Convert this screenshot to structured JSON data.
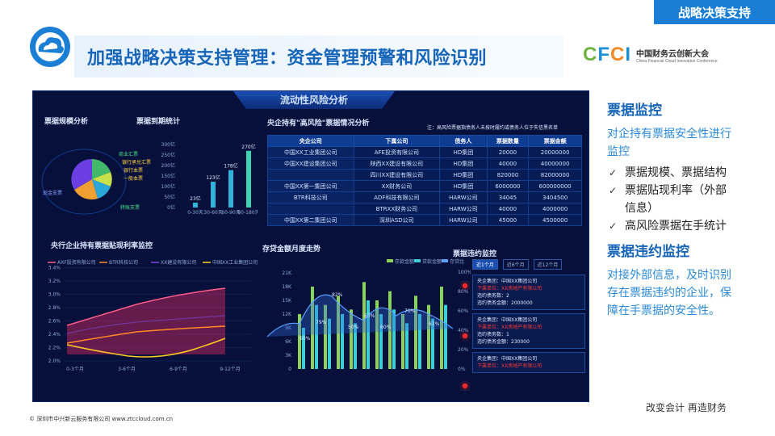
{
  "corner_tag": "战略决策支持",
  "title": "加强战略决策支持管理：资金管理预警和风险识别",
  "cfci": {
    "mark_c": "C",
    "mark_f": "F",
    "mark_c2": "C",
    "mark_i": "I",
    "name_cn": "中国财务云创新大会",
    "name_en": "China Financial Cloud Innovation Conference"
  },
  "dashboard": {
    "header": "流动性风险分析",
    "scale_title": "票据规模分析",
    "due_title": "票据到期统计",
    "pie_labels": [
      "商业汇票",
      "银行承兑汇票",
      "银行本票",
      "一般本票",
      "现金支票",
      "转账支票"
    ],
    "due_bars": {
      "labels": [
        "0-30天",
        "30-60天",
        "60-90天",
        "90-180天"
      ],
      "values": [
        "23亿",
        "123亿",
        "178亿",
        "270亿"
      ],
      "ticks": [
        "0亿",
        "50亿",
        "100亿",
        "150亿",
        "200亿",
        "250亿",
        "300亿"
      ]
    },
    "risk_title": "央企持有\"高风险\"票据情况分析",
    "risk_notice": "注：高风险票据指债务人未按时履约或债务人位于失信黑名单",
    "table": {
      "headers": [
        "央企公司",
        "下属公司",
        "债务人",
        "票据数量",
        "票据金额"
      ],
      "rows": [
        [
          "中国XX工业集团公司",
          "AFE投资有限公司",
          "HD集团",
          "20000",
          "20000000"
        ],
        [
          "中国XX建设集团公司",
          "陕西XX建设有限公司",
          "HD集团",
          "40000",
          "40000000"
        ],
        [
          "",
          "四川XX建设有限公司",
          "HD集团",
          "820000",
          "82000000"
        ],
        [
          "中国XX第一集团公司",
          "XX财务公司",
          "HD集团",
          "6000000",
          "600000000"
        ],
        [
          "BTR科技公司",
          "ADF科技有限公司",
          "HARW公司",
          "34045",
          "3404500"
        ],
        [
          "",
          "BTRXX财务公司",
          "HARW公司",
          "40000",
          "4000000"
        ],
        [
          "中国XX第二集团公司",
          "深圳ASD公司",
          "HARW公司",
          "45000",
          "4500000"
        ]
      ]
    },
    "discount_title": "央行企业持有票据贴现利率监控",
    "discount_legend": [
      "AXF投资有限公司",
      "BTR科技公司",
      "XX建设有限公司",
      "中国XX工业集团公司"
    ],
    "discount_yticks": [
      "2.0%",
      "2.2%",
      "2.4%",
      "2.6%",
      "2.8%",
      "3.0%",
      "3.2%",
      "3.4%"
    ],
    "discount_xticks": [
      "0-3个月",
      "3-6个月",
      "6-9个月",
      "9-12个月"
    ],
    "deposit_title": "存贷金额月度走势",
    "deposit_legend": [
      "存款金额",
      "贷款金额",
      "存贷比"
    ],
    "deposit_yticks": [
      "0",
      "3K",
      "6K",
      "9K",
      "12K",
      "15K",
      "18K",
      "21K"
    ],
    "deposit_pct": [
      "0%",
      "20%",
      "40%",
      "60%",
      "80%",
      "100%"
    ],
    "deposit_labels": [
      "60%",
      "79%",
      "82%",
      "50%",
      "63%",
      "60%",
      "70%",
      "61%"
    ],
    "violation_title": "票据违约监控",
    "violation_tabs": [
      "近1个月",
      "近6个月",
      "近12个月"
    ],
    "violation_cards": [
      {
        "l1": "央企集团：中国XX集团公司",
        "l2": "下属单位：XX房地产有限公司",
        "l3": "违约债务数：2",
        "l4": "违约债务金额：2000000"
      },
      {
        "l1": "央企集团：中国XX集团公司",
        "l2": "下属单位：XX房地产有限公司",
        "l3": "违约债务数：1",
        "l4": "违约债务金额：230000"
      },
      {
        "l1": "央企集团：中国XX集团公司",
        "l2": "下属单位：XX房地产有限公司",
        "l3": "",
        "l4": ""
      }
    ]
  },
  "side": {
    "h1": "票据监控",
    "p1": "对企持有票据安全性进行监控",
    "items": [
      "票据规模、票据结构",
      "票据贴现利率（外部信息）",
      "高风险票据在手统计"
    ],
    "h2": "票据违约监控",
    "p2": "对接外部信息，及时识别存在票据违约的企业，保障在手票据的安全性。"
  },
  "footer_left": "© 深圳市中兴新云服务有限公司 www.ztccloud.com.cn",
  "footer_right": "改变会计 再造财务",
  "colors": {
    "accent": "#1765b8",
    "brand_blue": "#1a7fd4",
    "dash_bg": "#07103a"
  }
}
